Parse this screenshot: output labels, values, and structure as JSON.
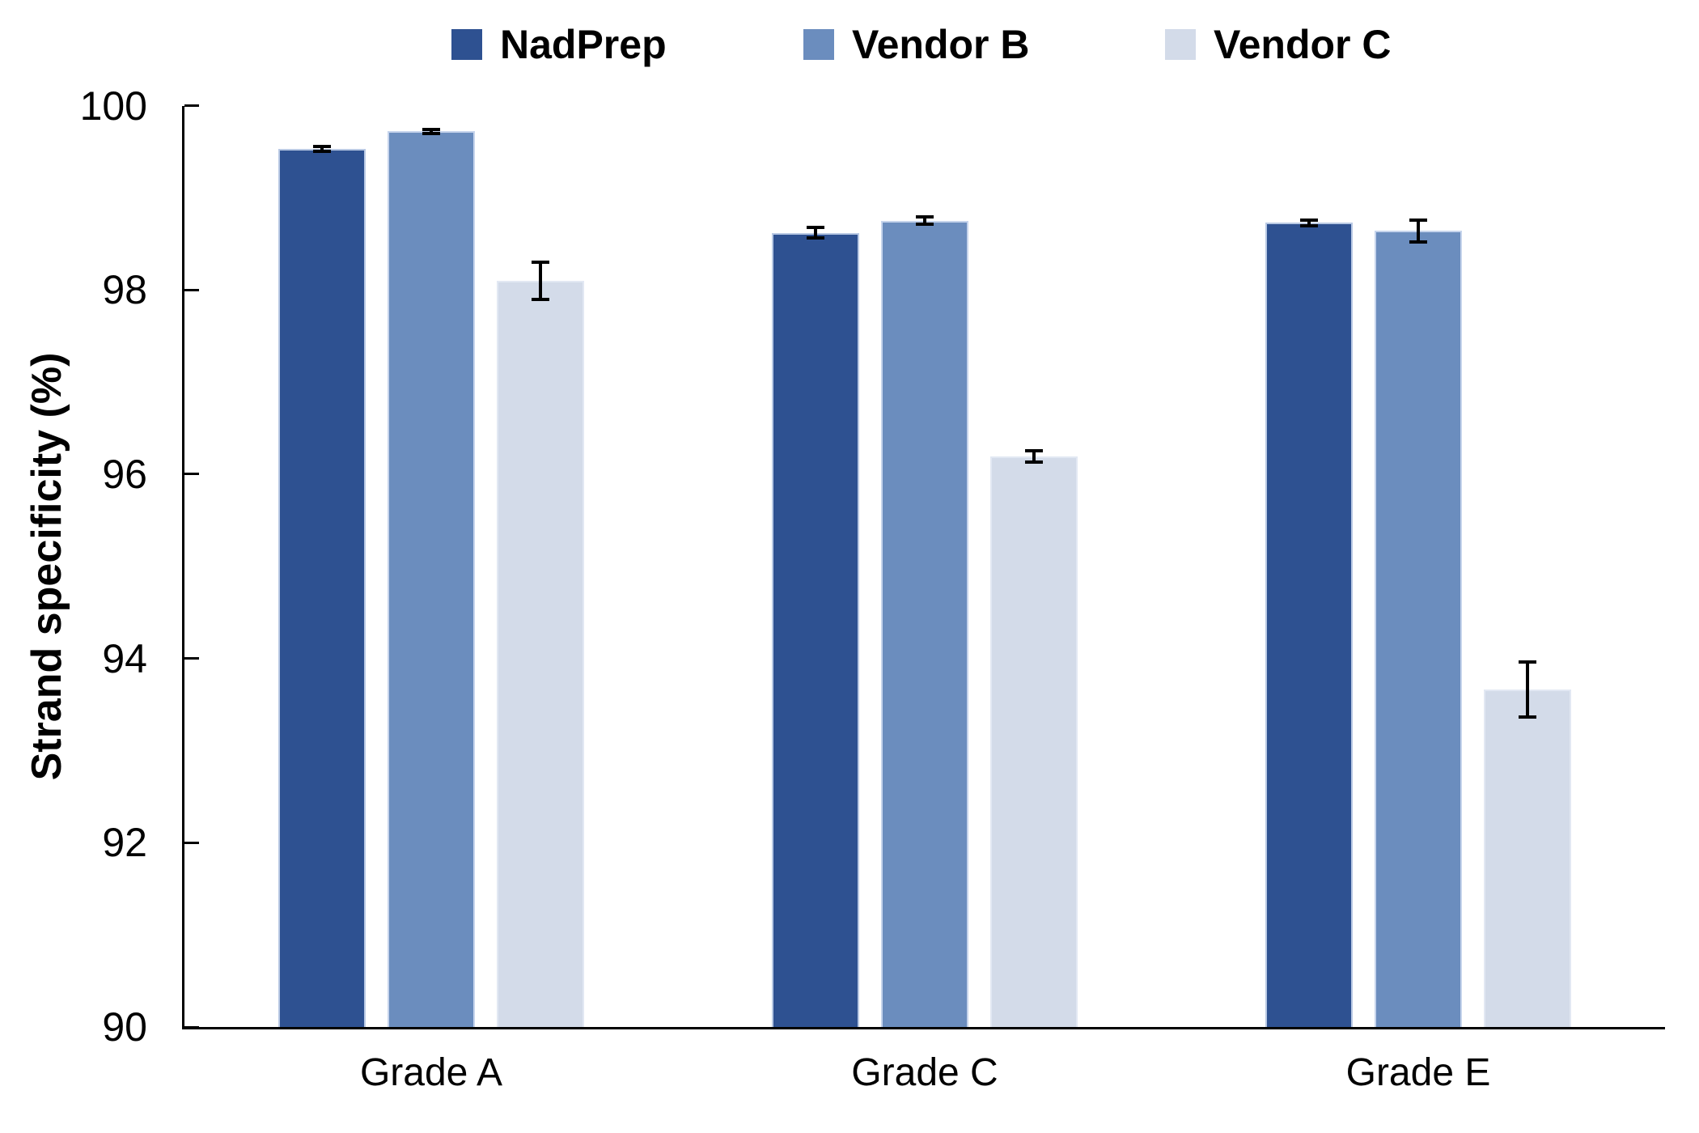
{
  "chart_data": {
    "type": "bar",
    "ylabel": "Strand specificity (%)",
    "categories": [
      "Grade A",
      "Grade C",
      "Grade E"
    ],
    "series": [
      {
        "name": "NadPrep",
        "color": "#2E5191",
        "border_color": "#B9C9E4",
        "values": [
          99.53,
          98.62,
          98.73
        ],
        "errors": [
          0.03,
          0.06,
          0.03
        ]
      },
      {
        "name": "Vendor B",
        "color": "#6B8DBE",
        "border_color": "#C6D4EC",
        "values": [
          99.72,
          98.75,
          98.64
        ],
        "errors": [
          0.02,
          0.04,
          0.12
        ]
      },
      {
        "name": "Vendor C",
        "color": "#D3DBE9",
        "border_color": "#E2E8F3",
        "values": [
          98.1,
          96.19,
          93.66
        ],
        "errors": [
          0.2,
          0.06,
          0.3
        ]
      }
    ],
    "ylim": [
      90,
      100
    ],
    "yticks": [
      90,
      92,
      94,
      96,
      98,
      100
    ],
    "grid": false,
    "legend_position": "top",
    "error_bar_color": "#000000",
    "axis_color": "#000000",
    "text_color": "#000000",
    "background": "#FFFFFF"
  }
}
